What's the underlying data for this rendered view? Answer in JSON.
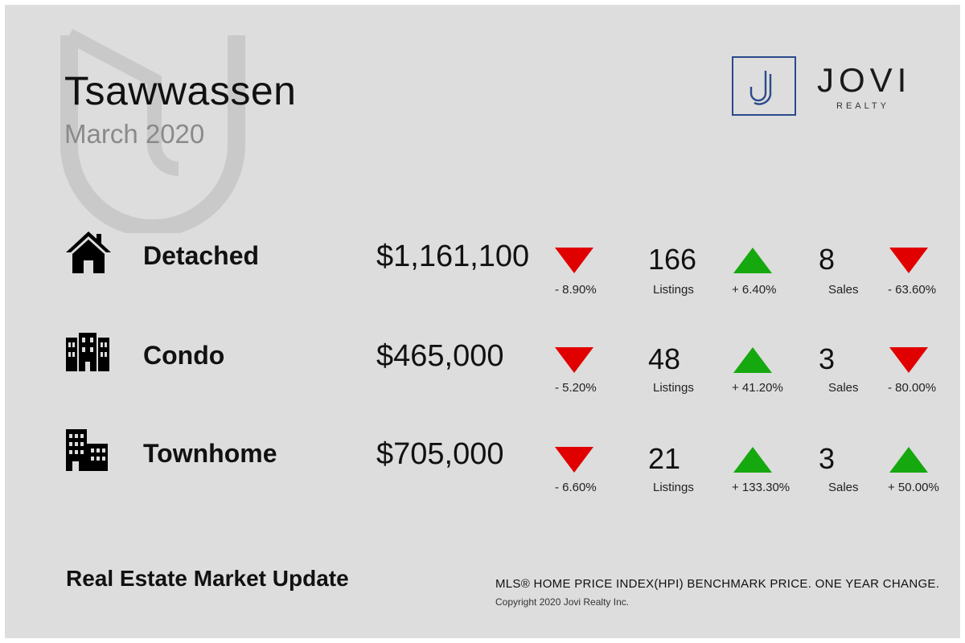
{
  "header": {
    "title": "Tsawwassen",
    "subtitle": "March 2020"
  },
  "logo": {
    "mark": "J",
    "word": "JOVI",
    "sub": "REALTY",
    "accent": "#2b4a8a"
  },
  "colors": {
    "down": "#e10000",
    "up": "#16a80f",
    "background": "#dddddd"
  },
  "rows": [
    {
      "icon": "house-icon",
      "type": "Detached",
      "price": "$1,161,100",
      "price_change": "- 8.90%",
      "price_dir": "down",
      "listings": "166",
      "listings_label": "Listings",
      "listings_change": "+ 6.40%",
      "listings_dir": "up",
      "sales": "8",
      "sales_label": "Sales",
      "sales_change": "- 63.60%",
      "sales_dir": "down"
    },
    {
      "icon": "condo-building-icon",
      "type": "Condo",
      "price": "$465,000",
      "price_change": "- 5.20%",
      "price_dir": "down",
      "listings": "48",
      "listings_label": "Listings",
      "listings_change": "+ 41.20%",
      "listings_dir": "up",
      "sales": "3",
      "sales_label": "Sales",
      "sales_change": "- 80.00%",
      "sales_dir": "down"
    },
    {
      "icon": "townhome-building-icon",
      "type": "Townhome",
      "price": "$705,000",
      "price_change": "- 6.60%",
      "price_dir": "down",
      "listings": "21",
      "listings_label": "Listings",
      "listings_change": "+ 133.30%",
      "listings_dir": "up",
      "sales": "3",
      "sales_label": "Sales",
      "sales_change": "+ 50.00%",
      "sales_dir": "up"
    }
  ],
  "footer": {
    "title": "Real Estate Market Update",
    "note": "MLS® HOME PRICE INDEX(HPI) BENCHMARK PRICE. ONE YEAR CHANGE.",
    "copyright": "Copyright 2020 Jovi Realty Inc."
  }
}
